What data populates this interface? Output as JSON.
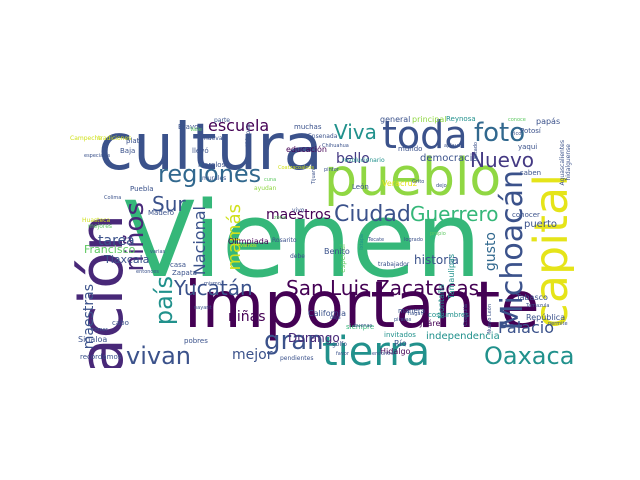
{
  "palette": {
    "dark_purple": "#440154",
    "indigo": "#3b528b",
    "slate_blue": "#31688e",
    "teal": "#21918c",
    "sea_green": "#35b779",
    "green": "#5ec962",
    "lime": "#90d743",
    "yellow": "#e5e419",
    "pale_yellow": "#d0e11c"
  },
  "words": [
    {
      "text": "Vienen",
      "color": "#35b779"
    },
    {
      "text": "importante",
      "color": "#440154"
    },
    {
      "text": "cultura",
      "color": "#3b528b"
    },
    {
      "text": "pueblo",
      "color": "#90d743"
    },
    {
      "text": "toda",
      "color": "#3b528b"
    },
    {
      "text": "nación",
      "color": "#482878"
    },
    {
      "text": "capital",
      "color": "#e5e419"
    },
    {
      "text": "tierra",
      "color": "#21918c"
    },
    {
      "text": "regiones",
      "color": "#31688e"
    },
    {
      "text": "escuela",
      "color": "#440154"
    },
    {
      "text": "foto",
      "color": "#31688e"
    },
    {
      "text": "Viva",
      "color": "#21918c"
    },
    {
      "text": "Nuevo",
      "color": "#443983"
    },
    {
      "text": "Ciudad",
      "color": "#3b528b"
    },
    {
      "text": "Guerrero",
      "color": "#35b779"
    },
    {
      "text": "Michoacán",
      "color": "#3b528b"
    },
    {
      "text": "Yucatán",
      "color": "#3b528b"
    },
    {
      "text": "San Luis",
      "color": "#440154"
    },
    {
      "text": "Zacatecas",
      "color": "#440154"
    },
    {
      "text": "Oaxaca",
      "color": "#21918c"
    },
    {
      "text": "gran",
      "color": "#3b528b"
    },
    {
      "text": "vivan",
      "color": "#3b528b"
    },
    {
      "text": "país",
      "color": "#21918c"
    },
    {
      "text": "niños",
      "color": "#482878"
    },
    {
      "text": "maestras",
      "color": "#3b528b"
    },
    {
      "text": "maestros",
      "color": "#440154"
    },
    {
      "text": "mamás",
      "color": "#d0e11c"
    },
    {
      "text": "Sur",
      "color": "#3b528b"
    },
    {
      "text": "bello",
      "color": "#443983"
    },
    {
      "text": "tarea",
      "color": "#3b528b"
    },
    {
      "text": "Nacional",
      "color": "#3b528b"
    },
    {
      "text": "niñas",
      "color": "#440154"
    },
    {
      "text": "mejor",
      "color": "#3b528b"
    },
    {
      "text": "Durango",
      "color": "#482878"
    },
    {
      "text": "Palacio",
      "color": "#3b528b"
    },
    {
      "text": "gusto",
      "color": "#31688e"
    },
    {
      "text": "historia",
      "color": "#3b528b"
    },
    {
      "text": "Tlaxcala",
      "color": "#3b528b"
    },
    {
      "text": "Francisco",
      "color": "#5ec962"
    },
    {
      "text": "independencia",
      "color": "#21918c"
    },
    {
      "text": "democracia",
      "color": "#3b528b"
    },
    {
      "text": "Olimpiada",
      "color": "#440154"
    },
    {
      "text": "Veracruz",
      "color": "#e5e419"
    },
    {
      "text": "puerto",
      "color": "#3b528b"
    },
    {
      "text": "Sinaloa",
      "color": "#3b528b"
    },
    {
      "text": "Tabasco",
      "color": "#3b528b"
    },
    {
      "text": "Hidalgo",
      "color": "#440154"
    },
    {
      "text": "Benito",
      "color": "#3b528b"
    },
    {
      "text": "California",
      "color": "#3b528b"
    },
    {
      "text": "Montaña",
      "color": "#21918c"
    },
    {
      "text": "Tamaulipas",
      "color": "#21918c"
    },
    {
      "text": "República",
      "color": "#3b528b"
    },
    {
      "text": "Río",
      "color": "#3b528b"
    },
    {
      "text": "Juárez",
      "color": "#440154"
    },
    {
      "text": "educación",
      "color": "#440154"
    },
    {
      "text": "principal",
      "color": "#90d743"
    },
    {
      "text": "general",
      "color": "#3b528b"
    },
    {
      "text": "papás",
      "color": "#3b528b"
    },
    {
      "text": "Puebla",
      "color": "#3b528b"
    },
    {
      "text": "Morelos",
      "color": "#3b528b"
    },
    {
      "text": "Zapata",
      "color": "#3b528b"
    },
    {
      "text": "Madero",
      "color": "#3b528b"
    },
    {
      "text": "Bravo",
      "color": "#3b528b"
    },
    {
      "text": "Baja",
      "color": "#3b528b"
    },
    {
      "text": "plata",
      "color": "#3b528b"
    },
    {
      "text": "llevó",
      "color": "#3b528b"
    },
    {
      "text": "muchas",
      "color": "#3b528b"
    },
    {
      "text": "mundo",
      "color": "#3b528b"
    },
    {
      "text": "León",
      "color": "#3b528b"
    },
    {
      "text": "Rosarito",
      "color": "#3b528b"
    },
    {
      "text": "Reynosa",
      "color": "#21918c"
    },
    {
      "text": "Potosí",
      "color": "#3b528b"
    },
    {
      "text": "yaqui",
      "color": "#3b528b"
    },
    {
      "text": "conocer",
      "color": "#3b528b"
    },
    {
      "text": "saben",
      "color": "#3b528b"
    },
    {
      "text": "recordamos",
      "color": "#3b528b"
    },
    {
      "text": "pobres",
      "color": "#3b528b"
    },
    {
      "text": "Huasteca",
      "color": "#d0e11c"
    },
    {
      "text": "casa",
      "color": "#3b528b"
    },
    {
      "text": "cabo",
      "color": "#3b528b"
    },
    {
      "text": "trabajador",
      "color": "#3b528b"
    },
    {
      "text": "especial",
      "color": "#5ec962"
    },
    {
      "text": "costumbres",
      "color": "#21918c"
    },
    {
      "text": "invitados",
      "color": "#21918c"
    },
    {
      "text": "siempre",
      "color": "#35b779"
    },
    {
      "text": "golfo",
      "color": "#3b528b"
    },
    {
      "text": "manera",
      "color": "#3b528b"
    },
    {
      "text": "Campeche",
      "color": "#d0e11c"
    },
    {
      "text": "tradiciones",
      "color": "#d0e11c"
    },
    {
      "text": "murales",
      "color": "#3b528b"
    },
    {
      "text": "Aguascalientes",
      "color": "#3b528b"
    },
    {
      "text": "hidalguense",
      "color": "#3b528b"
    },
    {
      "text": "parte",
      "color": "#3b528b"
    },
    {
      "text": "mejores",
      "color": "#5ec962"
    },
    {
      "text": "nuevas",
      "color": "#3b528b"
    },
    {
      "text": "Ensenada",
      "color": "#3b528b"
    },
    {
      "text": "Chiapas",
      "color": "#3b528b"
    },
    {
      "text": "pendientes",
      "color": "#3b528b"
    },
    {
      "text": "vivo",
      "color": "#3b528b"
    },
    {
      "text": "Colima",
      "color": "#3b528b"
    },
    {
      "text": "debe",
      "color": "#3b528b"
    },
    {
      "text": "ayudan",
      "color": "#90d743"
    },
    {
      "text": "logrado",
      "color": "#3b528b"
    },
    {
      "text": "Grito",
      "color": "#3b528b"
    },
    {
      "text": "conoce",
      "color": "#5ec962"
    },
    {
      "text": "Tecate",
      "color": "#3b528b"
    },
    {
      "text": "Tijuana",
      "color": "#3b528b"
    },
    {
      "text": "Tamazula",
      "color": "#3b528b"
    },
    {
      "text": "Valle",
      "color": "#5ec962"
    },
    {
      "text": "dejo",
      "color": "#3b528b"
    },
    {
      "text": "aplauso",
      "color": "#3b528b"
    },
    {
      "text": "buenas",
      "color": "#3b528b"
    },
    {
      "text": "favor",
      "color": "#3b528b"
    },
    {
      "text": "permite",
      "color": "#3b528b"
    },
    {
      "text": "comer",
      "color": "#3b528b"
    },
    {
      "text": "nayarit",
      "color": "#3b528b"
    },
    {
      "text": "hagan",
      "color": "#3b528b"
    },
    {
      "text": "piratas",
      "color": "#3b528b"
    },
    {
      "text": "revolucionario",
      "color": "#21918c"
    },
    {
      "text": "pintor",
      "color": "#3b528b"
    },
    {
      "text": "entonces",
      "color": "#3b528b"
    },
    {
      "text": "rico",
      "color": "#3b528b"
    },
    {
      "text": "varias",
      "color": "#3b528b"
    },
    {
      "text": "deja",
      "color": "#3b528b"
    },
    {
      "text": "encontró",
      "color": "#3b528b"
    },
    {
      "text": "estado",
      "color": "#3b528b"
    },
    {
      "text": "especiales",
      "color": "#3b528b"
    },
    {
      "text": "mismo",
      "color": "#3b528b"
    },
    {
      "text": "Coahuila",
      "color": "#3b528b"
    },
    {
      "text": "Ixtapa",
      "color": "#21918c"
    },
    {
      "text": "cuna",
      "color": "#5ec962"
    },
    {
      "text": "propio",
      "color": "#5ec962"
    },
    {
      "text": "Nuevo León",
      "color": "#3b528b"
    },
    {
      "text": "zona",
      "color": "#5ec962"
    },
    {
      "text": "vamos",
      "color": "#d0e11c"
    },
    {
      "text": "Coatzacoalcos",
      "color": "#d0e11c"
    },
    {
      "text": "Chihuahua",
      "color": "#3b528b"
    }
  ]
}
